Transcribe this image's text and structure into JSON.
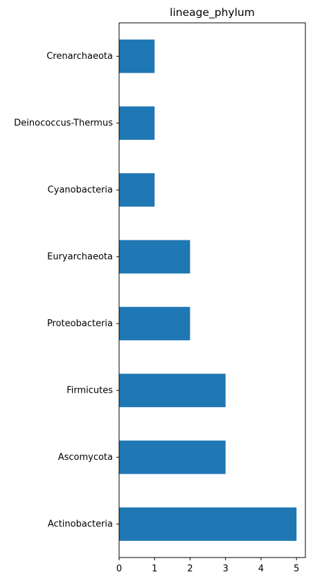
{
  "chart_data": {
    "type": "bar",
    "orientation": "horizontal",
    "title": "lineage_phylum",
    "xlabel": "",
    "ylabel": "",
    "categories": [
      "Actinobacteria",
      "Ascomycota",
      "Firmicutes",
      "Proteobacteria",
      "Euryarchaeota",
      "Cyanobacteria",
      "Deinococcus-Thermus",
      "Crenarchaeota"
    ],
    "values": [
      5,
      3,
      3,
      2,
      2,
      1,
      1,
      1
    ],
    "xlim": [
      0,
      5.25
    ],
    "xticks": [
      "0",
      "1",
      "2",
      "3",
      "4",
      "5"
    ],
    "grid": false,
    "bar_color": "#1f77b4"
  }
}
